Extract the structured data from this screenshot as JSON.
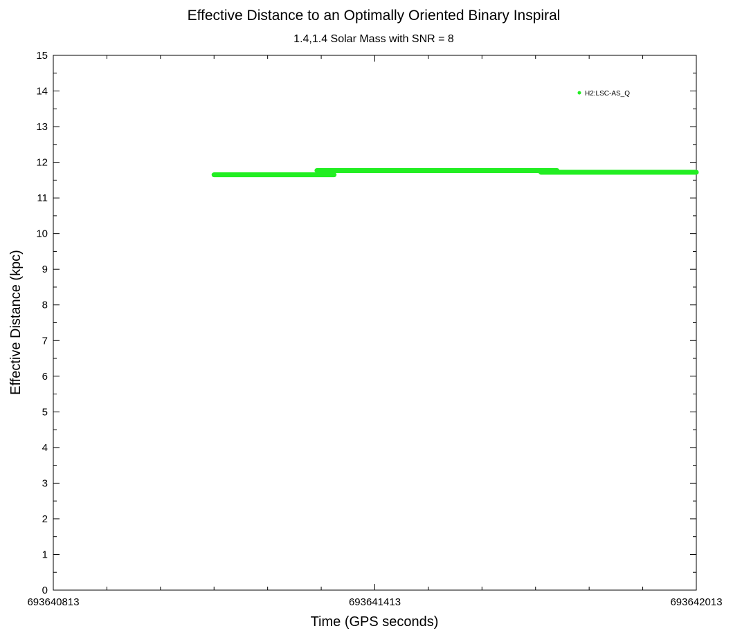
{
  "chart_data": {
    "type": "scatter",
    "title": "Effective Distance to an Optimally Oriented Binary Inspiral",
    "subtitle": "1.4,1.4 Solar Mass with SNR = 8",
    "xlabel": "Time (GPS seconds)",
    "ylabel": "Effective Distance (kpc)",
    "xlim": [
      693640813,
      693642013
    ],
    "ylim": [
      0,
      15
    ],
    "x_ticks": [
      "693640813",
      "693641413",
      "693642013"
    ],
    "y_ticks": [
      "0",
      "1",
      "2",
      "3",
      "4",
      "5",
      "6",
      "7",
      "8",
      "9",
      "10",
      "11",
      "12",
      "13",
      "14",
      "15"
    ],
    "grid": false,
    "legend_position": "top-right",
    "series": [
      {
        "name": "H2:LSC-AS_Q",
        "color": "#22ee22",
        "segments": [
          {
            "x_start": 693641113,
            "x_end": 693641337,
            "y": 11.65
          },
          {
            "x_start": 693641305,
            "x_end": 693641753,
            "y": 11.77
          },
          {
            "x_start": 693641723,
            "x_end": 693642013,
            "y": 11.72
          }
        ]
      }
    ]
  }
}
